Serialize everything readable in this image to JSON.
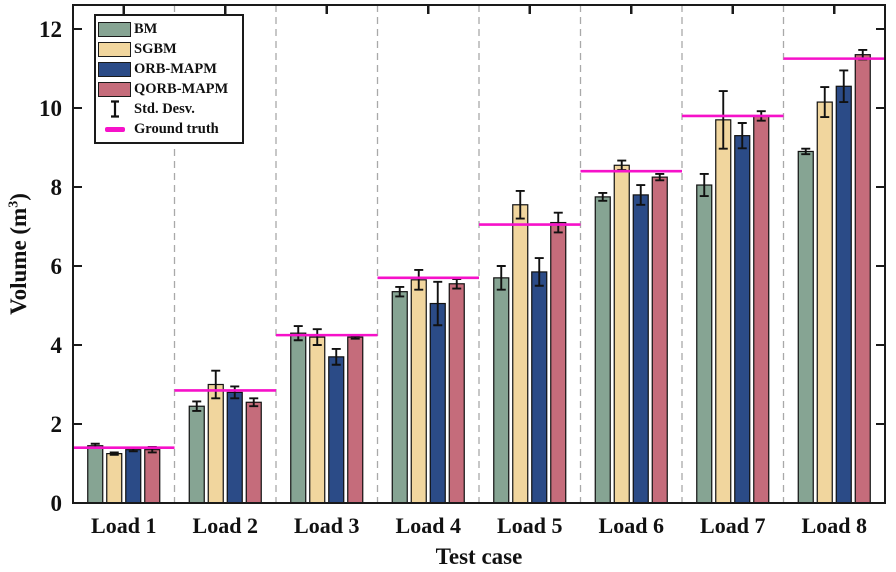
{
  "chart_data": {
    "type": "bar",
    "title": "",
    "xlabel": "Test case",
    "ylabel": "Volume (m³)",
    "ylabel_parts": {
      "main": "Volume (m",
      "sup": "3",
      "close": ")"
    },
    "ylim": [
      0,
      12.6
    ],
    "yticks": [
      0,
      2,
      4,
      6,
      8,
      10,
      12
    ],
    "grid": "vertical-dashed-group-separators",
    "legend_position": "top-left",
    "categories": [
      "Load 1",
      "Load 2",
      "Load 3",
      "Load 4",
      "Load 5",
      "Load 6",
      "Load 7",
      "Load 8"
    ],
    "series": [
      {
        "name": "BM",
        "color": "#86A493",
        "values": [
          1.45,
          2.45,
          4.3,
          5.35,
          5.7,
          7.75,
          8.05,
          8.9
        ],
        "std": [
          0.05,
          0.12,
          0.18,
          0.12,
          0.3,
          0.1,
          0.28,
          0.07
        ]
      },
      {
        "name": "SGBM",
        "color": "#F1D69E",
        "values": [
          1.25,
          3.0,
          4.2,
          5.65,
          7.55,
          8.55,
          9.7,
          10.15
        ],
        "std": [
          0.03,
          0.35,
          0.2,
          0.25,
          0.35,
          0.12,
          0.73,
          0.38
        ]
      },
      {
        "name": "ORB-MAPM",
        "color": "#2B4B87",
        "values": [
          1.35,
          2.8,
          3.7,
          5.05,
          5.85,
          7.8,
          9.3,
          10.55
        ],
        "std": [
          0.04,
          0.15,
          0.2,
          0.55,
          0.35,
          0.25,
          0.32,
          0.4
        ]
      },
      {
        "name": "QORB-MAPM",
        "color": "#C56C7B",
        "values": [
          1.35,
          2.55,
          4.2,
          5.55,
          7.1,
          8.25,
          9.8,
          11.35
        ],
        "std": [
          0.07,
          0.1,
          0.04,
          0.12,
          0.25,
          0.08,
          0.12,
          0.12
        ]
      }
    ],
    "std_legend_label": "Std. Desv.",
    "ground_truth": {
      "name": "Ground truth",
      "color": "#F611C9",
      "values": [
        1.4,
        2.85,
        4.25,
        5.7,
        7.05,
        8.4,
        9.8,
        11.25
      ]
    },
    "colors": {
      "axis": "#1a1a1a",
      "error_bar": "#111111",
      "grid": "#a9a9a9",
      "background": "#ffffff"
    }
  }
}
